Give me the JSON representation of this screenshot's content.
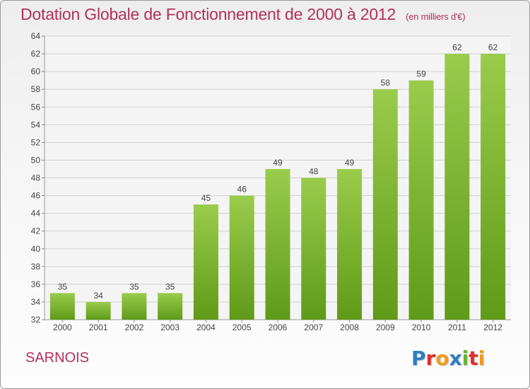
{
  "title": "Dotation Globale de Fonctionnement de 2000 à 2012",
  "subtitle": "(en milliers d'€)",
  "commune": "SARNOIS",
  "logo": {
    "letters": [
      {
        "ch": "P",
        "color": "#2f7fc1"
      },
      {
        "ch": "r",
        "color": "#e0312c"
      },
      {
        "ch": "o",
        "color": "#f29a1e"
      },
      {
        "ch": "x",
        "color": "#2f7fc1"
      },
      {
        "ch": "i",
        "color": "#6bb533"
      },
      {
        "ch": "t",
        "color": "#e0312c"
      },
      {
        "ch": "i",
        "color": "#f29a1e"
      }
    ]
  },
  "colors": {
    "bar_top": "#9acc4c",
    "bar_bottom": "#5f9a18",
    "title": "#b3305a"
  },
  "chart_data": {
    "type": "bar",
    "categories": [
      "2000",
      "2001",
      "2002",
      "2003",
      "2004",
      "2005",
      "2006",
      "2007",
      "2008",
      "2009",
      "2010",
      "2011",
      "2012"
    ],
    "values": [
      35,
      34,
      35,
      35,
      45,
      46,
      49,
      48,
      49,
      58,
      59,
      62,
      62
    ],
    "ylim": [
      32,
      64
    ],
    "yticks": [
      32,
      34,
      36,
      38,
      40,
      42,
      44,
      46,
      48,
      50,
      52,
      54,
      56,
      58,
      60,
      62,
      64
    ],
    "grid": true
  }
}
